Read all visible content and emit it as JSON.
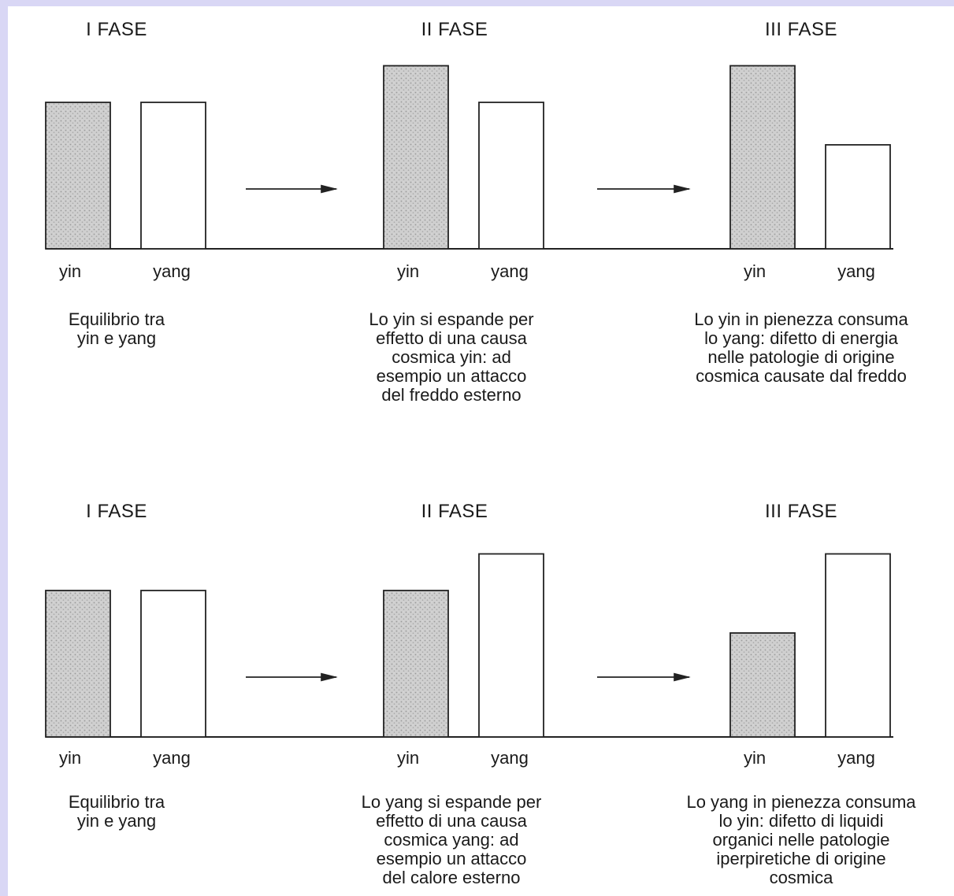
{
  "diagrams": [
    {
      "phases": [
        {
          "title": "I FASE",
          "yin_label": "yin",
          "yang_label": "yang",
          "yin": 1.0,
          "yang": 1.0,
          "caption": "Equilibrio tra\nyin e yang"
        },
        {
          "title": "II FASE",
          "yin_label": "yin",
          "yang_label": "yang",
          "yin": 1.25,
          "yang": 1.0,
          "caption": "Lo yin si espande per\neffetto di una causa\ncosmica yin: ad\nesempio un attacco\ndel freddo esterno"
        },
        {
          "title": "III FASE",
          "yin_label": "yin",
          "yang_label": "yang",
          "yin": 1.25,
          "yang": 0.71,
          "caption": "Lo yin in pienezza consuma\nlo yang: difetto di energia\nnelle patologie di origine\ncosmica causate dal freddo"
        }
      ]
    },
    {
      "phases": [
        {
          "title": "I FASE",
          "yin_label": "yin",
          "yang_label": "yang",
          "yin": 1.0,
          "yang": 1.0,
          "caption": "Equilibrio tra\nyin e yang"
        },
        {
          "title": "II FASE",
          "yin_label": "yin",
          "yang_label": "yang",
          "yin": 1.0,
          "yang": 1.25,
          "caption": "Lo yang si espande per\neffetto di una causa\ncosmica yang: ad\nesempio un attacco\ndel calore esterno"
        },
        {
          "title": "III FASE",
          "yin_label": "yin",
          "yang_label": "yang",
          "yin": 0.71,
          "yang": 1.25,
          "caption": "Lo yang in pienezza consuma\nlo yin: difetto di liquidi\norganici nelle patologie\niperpiretiche di origine\ncosmica"
        }
      ]
    }
  ],
  "colors": {
    "yin_fill": "#c9c9c9",
    "yang_fill": "#ffffff",
    "stroke": "#222222",
    "frame": "#d9d7f5"
  }
}
